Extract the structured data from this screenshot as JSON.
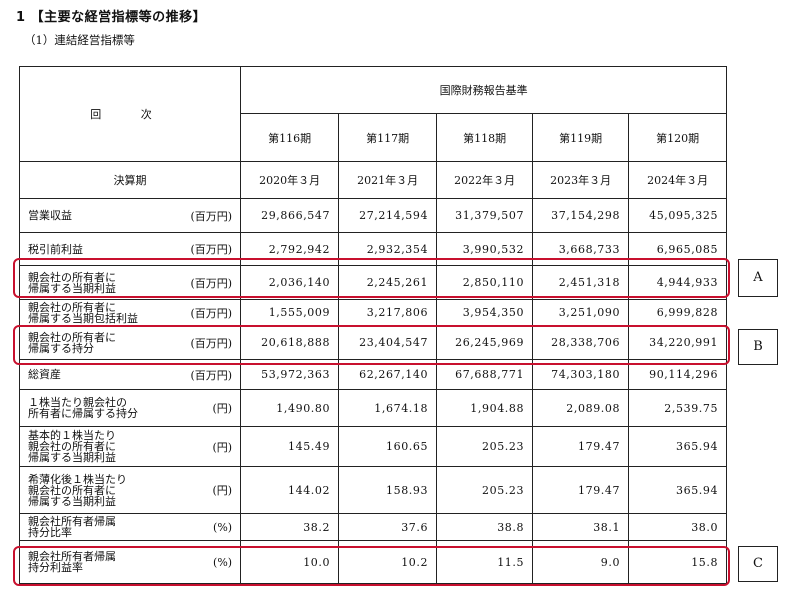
{
  "section_title": "1 【主要な経営指標等の推移】",
  "subsection_title": "（1）連結経営指標等",
  "table": {
    "header_kaiji": "回 次",
    "header_standard": "国際財務報告基準",
    "periods": [
      "第116期",
      "第117期",
      "第118期",
      "第119期",
      "第120期"
    ],
    "kessanki_label": "決算期",
    "dates": [
      "2020年３月",
      "2021年３月",
      "2022年３月",
      "2023年３月",
      "2024年３月"
    ],
    "rows": [
      {
        "label": "営業収益",
        "unit": "(百万円)",
        "values": [
          "29,866,547",
          "27,214,594",
          "31,379,507",
          "37,154,298",
          "45,095,325"
        ]
      },
      {
        "label": "税引前利益",
        "unit": "(百万円)",
        "values": [
          "2,792,942",
          "2,932,354",
          "3,990,532",
          "3,668,733",
          "6,965,085"
        ]
      },
      {
        "label": "親会社の所有者に\n帰属する当期利益",
        "unit": "(百万円)",
        "values": [
          "2,036,140",
          "2,245,261",
          "2,850,110",
          "2,451,318",
          "4,944,933"
        ]
      },
      {
        "label": "親会社の所有者に\n帰属する当期包括利益",
        "unit": "(百万円)",
        "values": [
          "1,555,009",
          "3,217,806",
          "3,954,350",
          "3,251,090",
          "6,999,828"
        ]
      },
      {
        "label": "親会社の所有者に\n帰属する持分",
        "unit": "(百万円)",
        "values": [
          "20,618,888",
          "23,404,547",
          "26,245,969",
          "28,338,706",
          "34,220,991"
        ]
      },
      {
        "label": "総資産",
        "unit": "(百万円)",
        "values": [
          "53,972,363",
          "62,267,140",
          "67,688,771",
          "74,303,180",
          "90,114,296"
        ]
      },
      {
        "label": "１株当たり親会社の\n所有者に帰属する持分",
        "unit": "(円)",
        "values": [
          "1,490.80",
          "1,674.18",
          "1,904.88",
          "2,089.08",
          "2,539.75"
        ]
      },
      {
        "label": "基本的１株当たり\n親会社の所有者に\n帰属する当期利益",
        "unit": "(円)",
        "values": [
          "145.49",
          "160.65",
          "205.23",
          "179.47",
          "365.94"
        ]
      },
      {
        "label": "希薄化後１株当たり\n親会社の所有者に\n帰属する当期利益",
        "unit": "(円)",
        "values": [
          "144.02",
          "158.93",
          "205.23",
          "179.47",
          "365.94"
        ]
      },
      {
        "label": "親会社所有者帰属\n持分比率",
        "unit": "(%)",
        "values": [
          "38.2",
          "37.6",
          "38.8",
          "38.1",
          "38.0"
        ]
      },
      {
        "label": "親会社所有者帰属\n持分利益率",
        "unit": "(%)",
        "values": [
          "10.0",
          "10.2",
          "11.5",
          "9.0",
          "15.8"
        ]
      }
    ]
  },
  "callouts": {
    "a": "A",
    "b": "B",
    "c": "C"
  },
  "colors": {
    "highlight": "#c8102e",
    "border": "#222222"
  }
}
